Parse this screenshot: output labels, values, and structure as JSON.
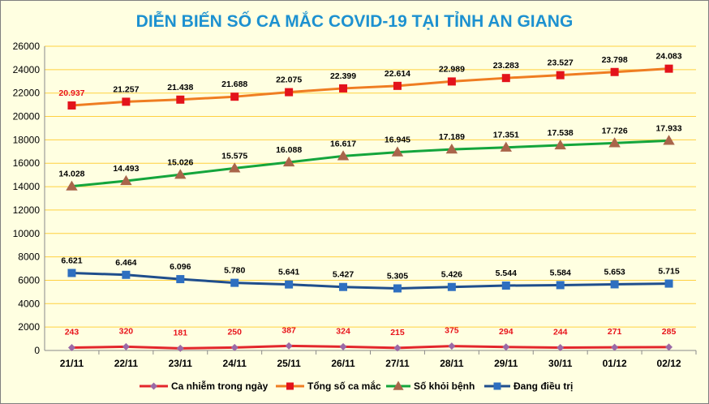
{
  "chart_data": {
    "type": "line",
    "title": "DIỄN BIẾN SỐ CA MẮC COVID-19 TẠI TỈNH AN GIANG",
    "xlabel": "",
    "ylabel": "",
    "categories": [
      "21/11",
      "22/11",
      "23/11",
      "24/11",
      "25/11",
      "26/11",
      "27/11",
      "28/11",
      "29/11",
      "30/11",
      "01/12",
      "02/12"
    ],
    "ylim": [
      0,
      26000
    ],
    "yticks": [
      0,
      2000,
      4000,
      6000,
      8000,
      10000,
      12000,
      14000,
      16000,
      18000,
      20000,
      22000,
      24000,
      26000
    ],
    "grid": "horizontal",
    "legend": "bottom",
    "series": [
      {
        "name": "Ca nhiễm trong ngày",
        "values": [
          243,
          320,
          181,
          250,
          387,
          324,
          215,
          375,
          294,
          244,
          271,
          285
        ],
        "labels": [
          "243",
          "320",
          "181",
          "250",
          "387",
          "324",
          "215",
          "375",
          "294",
          "244",
          "271",
          "285"
        ],
        "color": "#e3262b",
        "marker": "diamond",
        "marker_color": "#9b6aa6",
        "label_color": "#e8141b"
      },
      {
        "name": "Tổng số ca mắc",
        "values": [
          20937,
          21257,
          21438,
          21688,
          22075,
          22399,
          22614,
          22989,
          23283,
          23527,
          23798,
          24083
        ],
        "labels": [
          "20.937",
          "21.257",
          "21.438",
          "21.688",
          "22.075",
          "22.399",
          "22.614",
          "22.989",
          "23.283",
          "23.527",
          "23.798",
          "24.083"
        ],
        "color": "#ef7d22",
        "marker": "square",
        "marker_color": "#e3131b",
        "label_color": "#000000",
        "first_label_color": "#e8141b"
      },
      {
        "name": "Số khỏi bệnh",
        "values": [
          14028,
          14493,
          15026,
          15575,
          16088,
          16617,
          16945,
          17189,
          17351,
          17538,
          17726,
          17933
        ],
        "labels": [
          "14.028",
          "14.493",
          "15.026",
          "15.575",
          "16.088",
          "16.617",
          "16.945",
          "17.189",
          "17.351",
          "17.538",
          "17.726",
          "17.933"
        ],
        "color": "#14a53c",
        "marker": "triangle",
        "marker_color": "#a9654a",
        "label_color": "#000000"
      },
      {
        "name": "Đang điều trị",
        "values": [
          6621,
          6464,
          6096,
          5780,
          5641,
          5427,
          5305,
          5426,
          5544,
          5584,
          5653,
          5715
        ],
        "labels": [
          "6.621",
          "6.464",
          "6.096",
          "5.780",
          "5.641",
          "5.427",
          "5.305",
          "5.426",
          "5.544",
          "5.584",
          "5.653",
          "5.715"
        ],
        "color": "#1f4e8c",
        "marker": "square",
        "marker_color": "#2e6fc0",
        "label_color": "#000000"
      }
    ]
  },
  "colors": {
    "title": "#1d91d0",
    "background": "#ffffe1",
    "gridline": "#ffd040",
    "axis": "#8a8a8a"
  }
}
